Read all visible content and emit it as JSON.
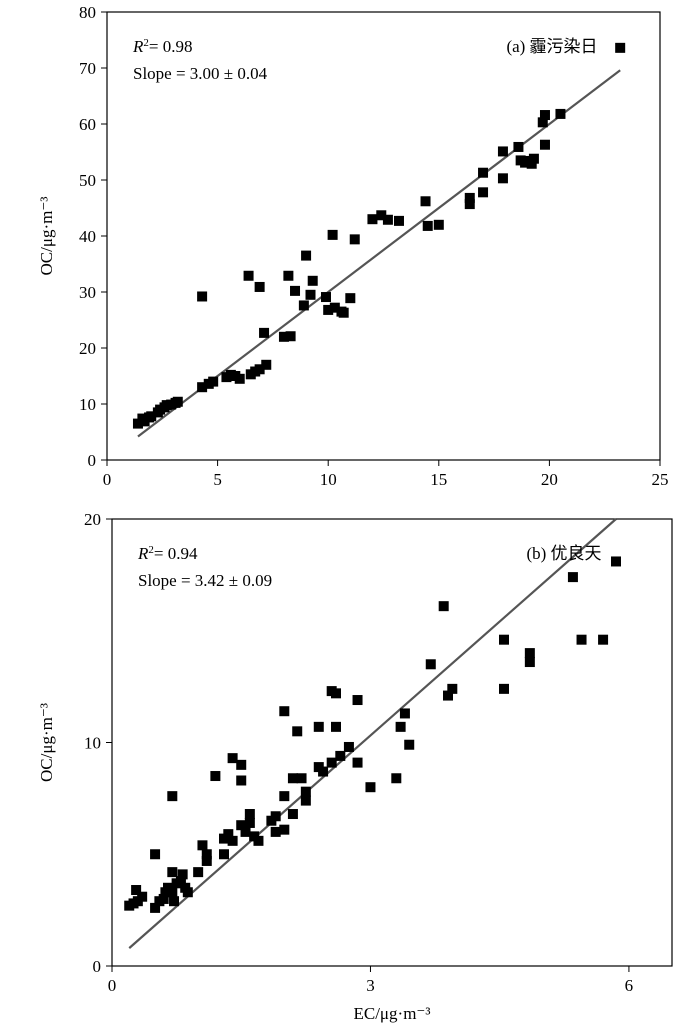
{
  "chart_data": [
    {
      "type": "scatter",
      "panel_label": "(a) 霾污染日",
      "ylabel": "OC/μg·m⁻³",
      "xlim": [
        0,
        25
      ],
      "ylim": [
        0,
        80
      ],
      "xticks": [
        0,
        5,
        10,
        15,
        20,
        25
      ],
      "yticks": [
        0,
        10,
        20,
        30,
        40,
        50,
        60,
        70,
        80
      ],
      "r2_label": "= 0.98",
      "slope_label": "Slope = 3.00 ± 0.04",
      "fit_line": [
        [
          1.4,
          4.2
        ],
        [
          23.2,
          69.6
        ]
      ],
      "points": [
        [
          1.4,
          6.5
        ],
        [
          1.6,
          7.4
        ],
        [
          1.7,
          6.9
        ],
        [
          1.9,
          7.6
        ],
        [
          2.0,
          7.8
        ],
        [
          2.3,
          8.5
        ],
        [
          2.4,
          9.0
        ],
        [
          2.6,
          9.4
        ],
        [
          2.7,
          9.8
        ],
        [
          2.9,
          9.9
        ],
        [
          3.1,
          10.2
        ],
        [
          3.2,
          10.4
        ],
        [
          4.3,
          13.0
        ],
        [
          4.6,
          13.6
        ],
        [
          4.8,
          14.0
        ],
        [
          5.4,
          14.8
        ],
        [
          5.6,
          15.2
        ],
        [
          5.8,
          15.0
        ],
        [
          6.0,
          14.5
        ],
        [
          6.5,
          15.3
        ],
        [
          6.7,
          15.8
        ],
        [
          6.9,
          16.2
        ],
        [
          7.2,
          17.0
        ],
        [
          8.0,
          22.0
        ],
        [
          8.3,
          22.1
        ],
        [
          7.1,
          22.7
        ],
        [
          4.3,
          29.2
        ],
        [
          6.4,
          32.9
        ],
        [
          6.9,
          30.9
        ],
        [
          8.2,
          32.9
        ],
        [
          8.5,
          30.2
        ],
        [
          8.9,
          27.6
        ],
        [
          9.2,
          29.5
        ],
        [
          9.3,
          32.0
        ],
        [
          9.9,
          29.1
        ],
        [
          10.0,
          26.8
        ],
        [
          10.3,
          27.2
        ],
        [
          10.6,
          26.5
        ],
        [
          10.7,
          26.3
        ],
        [
          11.0,
          28.9
        ],
        [
          9.0,
          36.5
        ],
        [
          10.2,
          40.2
        ],
        [
          11.2,
          39.4
        ],
        [
          12.0,
          43.0
        ],
        [
          12.4,
          43.7
        ],
        [
          12.7,
          42.9
        ],
        [
          13.2,
          42.7
        ],
        [
          14.4,
          46.2
        ],
        [
          14.5,
          41.8
        ],
        [
          15.0,
          42.0
        ],
        [
          16.4,
          45.7
        ],
        [
          16.4,
          46.8
        ],
        [
          17.0,
          47.8
        ],
        [
          17.0,
          51.3
        ],
        [
          17.9,
          55.1
        ],
        [
          17.9,
          50.3
        ],
        [
          18.6,
          55.9
        ],
        [
          18.7,
          53.5
        ],
        [
          18.9,
          53.1
        ],
        [
          19.1,
          53.4
        ],
        [
          19.3,
          53.8
        ],
        [
          19.2,
          52.9
        ],
        [
          19.7,
          60.3
        ],
        [
          19.8,
          61.6
        ],
        [
          19.8,
          56.3
        ],
        [
          20.5,
          61.8
        ],
        [
          23.2,
          73.6
        ]
      ]
    },
    {
      "type": "scatter",
      "panel_label": "(b) 优良天",
      "xlabel": "EC/μg·m⁻³",
      "ylabel": "OC/μg·m⁻³",
      "xlim": [
        0,
        6.5
      ],
      "ylim": [
        0,
        20
      ],
      "xticks": [
        0,
        3,
        6
      ],
      "yticks": [
        0,
        10,
        20
      ],
      "r2_label": "= 0.94",
      "slope_label": "Slope = 3.42 ± 0.09",
      "fit_line": [
        [
          0.2,
          0.8
        ],
        [
          5.85,
          20.0
        ]
      ],
      "points": [
        [
          0.2,
          2.7
        ],
        [
          0.25,
          2.8
        ],
        [
          0.3,
          2.9
        ],
        [
          0.35,
          3.1
        ],
        [
          0.28,
          3.4
        ],
        [
          0.5,
          2.6
        ],
        [
          0.55,
          2.9
        ],
        [
          0.6,
          3.0
        ],
        [
          0.62,
          3.3
        ],
        [
          0.65,
          3.5
        ],
        [
          0.7,
          3.3
        ],
        [
          0.72,
          2.9
        ],
        [
          0.75,
          3.7
        ],
        [
          0.8,
          3.8
        ],
        [
          0.82,
          4.1
        ],
        [
          0.85,
          3.5
        ],
        [
          0.88,
          3.3
        ],
        [
          0.7,
          4.2
        ],
        [
          0.5,
          5.0
        ],
        [
          1.0,
          4.2
        ],
        [
          1.1,
          4.7
        ],
        [
          1.1,
          5.0
        ],
        [
          1.05,
          5.4
        ],
        [
          1.3,
          5.0
        ],
        [
          1.3,
          5.7
        ],
        [
          1.35,
          5.9
        ],
        [
          1.4,
          5.6
        ],
        [
          1.5,
          6.3
        ],
        [
          1.55,
          6.0
        ],
        [
          1.6,
          6.4
        ],
        [
          1.6,
          6.8
        ],
        [
          1.65,
          5.8
        ],
        [
          1.7,
          5.6
        ],
        [
          1.85,
          6.5
        ],
        [
          1.9,
          6.7
        ],
        [
          1.9,
          6.0
        ],
        [
          2.0,
          6.1
        ],
        [
          2.0,
          7.6
        ],
        [
          2.1,
          6.8
        ],
        [
          2.25,
          7.4
        ],
        [
          2.25,
          7.8
        ],
        [
          2.1,
          8.4
        ],
        [
          2.2,
          8.4
        ],
        [
          2.4,
          8.9
        ],
        [
          2.45,
          8.7
        ],
        [
          2.55,
          9.1
        ],
        [
          2.65,
          9.4
        ],
        [
          2.75,
          9.8
        ],
        [
          2.85,
          9.1
        ],
        [
          3.0,
          8.0
        ],
        [
          3.3,
          8.4
        ],
        [
          1.5,
          8.3
        ],
        [
          1.2,
          8.5
        ],
        [
          1.5,
          9.0
        ],
        [
          1.4,
          9.3
        ],
        [
          0.7,
          7.6
        ],
        [
          2.0,
          11.4
        ],
        [
          2.15,
          10.5
        ],
        [
          2.4,
          10.7
        ],
        [
          2.6,
          10.7
        ],
        [
          2.55,
          12.3
        ],
        [
          2.6,
          12.2
        ],
        [
          2.85,
          11.9
        ],
        [
          3.35,
          10.7
        ],
        [
          3.4,
          11.3
        ],
        [
          3.45,
          9.9
        ],
        [
          3.7,
          13.5
        ],
        [
          3.85,
          16.1
        ],
        [
          3.9,
          12.1
        ],
        [
          3.95,
          12.4
        ],
        [
          4.55,
          14.6
        ],
        [
          4.55,
          12.4
        ],
        [
          4.85,
          14.0
        ],
        [
          4.85,
          13.6
        ],
        [
          5.35,
          17.4
        ],
        [
          5.45,
          14.6
        ],
        [
          5.7,
          14.6
        ],
        [
          5.85,
          18.1
        ]
      ]
    }
  ]
}
